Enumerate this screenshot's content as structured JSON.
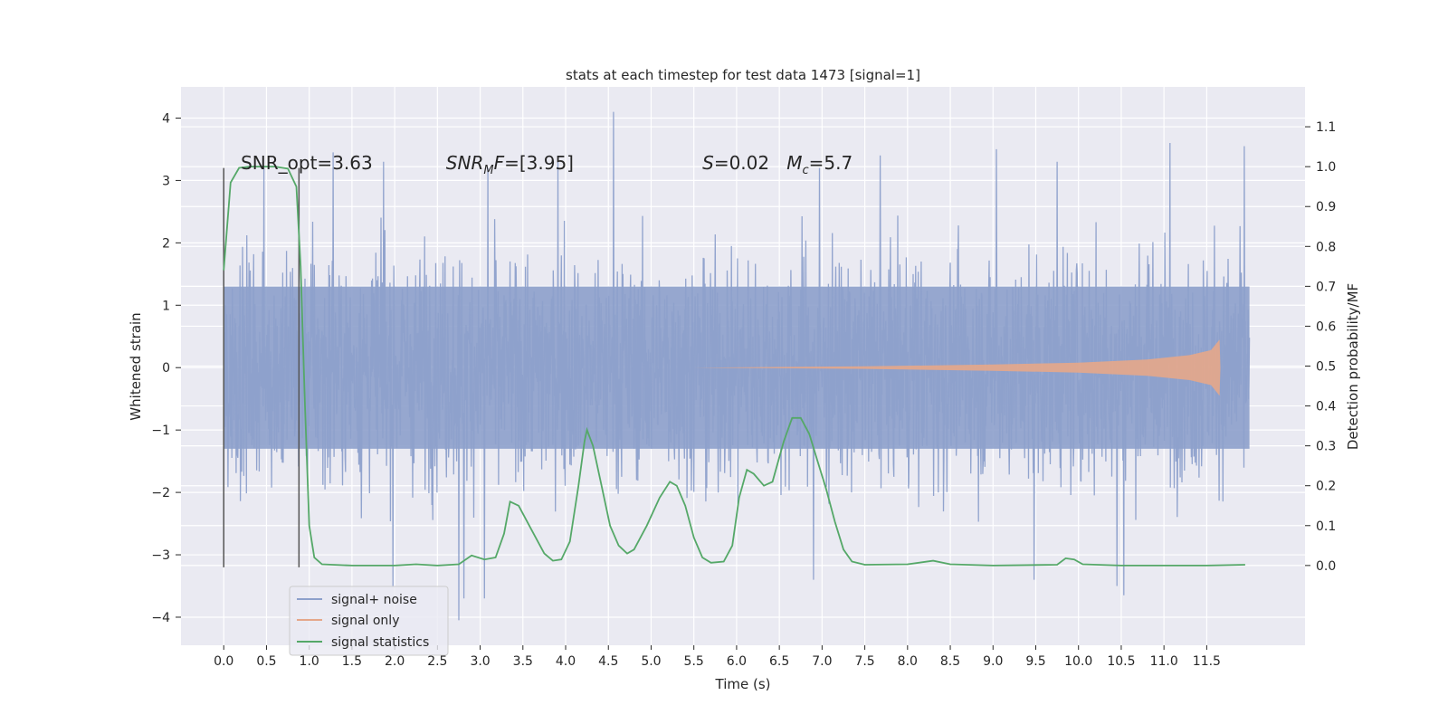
{
  "chart_data": {
    "type": "line",
    "title": "stats at each timestep for test data 1473 [signal=1]",
    "xlabel": "Time (s)",
    "ylabel_left": "Whitened strain",
    "ylabel_right": "Detection probability/MF",
    "xlim": [
      -0.5,
      12.65
    ],
    "ylim_left": [
      -4.45,
      4.5
    ],
    "ylim_right": [
      -0.2,
      1.2
    ],
    "xticks": [
      0.0,
      0.5,
      1.0,
      1.5,
      2.0,
      2.5,
      3.0,
      3.5,
      4.0,
      4.5,
      5.0,
      5.5,
      6.0,
      6.5,
      7.0,
      7.5,
      8.0,
      8.5,
      9.0,
      9.5,
      10.0,
      10.5,
      11.0,
      11.5
    ],
    "xtick_labels": [
      "0.0",
      "0.5",
      "1.0",
      "1.5",
      "2.0",
      "2.5",
      "3.0",
      "3.5",
      "4.0",
      "4.5",
      "5.0",
      "5.5",
      "6.0",
      "6.5",
      "7.0",
      "7.5",
      "8.0",
      "8.5",
      "9.0",
      "9.5",
      "10.0",
      "10.5",
      "11.0",
      "11.5"
    ],
    "yticks_left": [
      4,
      3,
      2,
      1,
      0,
      -1,
      -2,
      -3,
      -4
    ],
    "ytick_labels_left": [
      "4",
      "3",
      "2",
      "1",
      "0",
      "−1",
      "−2",
      "−3",
      "−4"
    ],
    "yticks_right": [
      1.1,
      1.0,
      0.9,
      0.8,
      0.7,
      0.6,
      0.5,
      0.4,
      0.3,
      0.2,
      0.1,
      0.0
    ],
    "ytick_labels_right": [
      "1.1",
      "1.0",
      "0.9",
      "0.8",
      "0.7",
      "0.6",
      "0.5",
      "0.4",
      "0.3",
      "0.2",
      "0.1",
      "0.0"
    ],
    "grid": true,
    "legend_position": "lower-left",
    "series": [
      {
        "name": "signal+ noise",
        "color": "#8da0cb",
        "axis": "left",
        "x_range": [
          0.0,
          12.0
        ],
        "band_limits": [
          -1.3,
          1.3
        ],
        "peaks": [
          {
            "x": 0.47,
            "y": 3.2
          },
          {
            "x": 1.28,
            "y": 3.45
          },
          {
            "x": 1.87,
            "y": 3.3
          },
          {
            "x": 3.09,
            "y": 3.2
          },
          {
            "x": 3.91,
            "y": 3.3
          },
          {
            "x": 4.56,
            "y": 4.1
          },
          {
            "x": 6.97,
            "y": 3.2
          },
          {
            "x": 7.68,
            "y": 3.4
          },
          {
            "x": 9.04,
            "y": 3.5
          },
          {
            "x": 9.75,
            "y": 3.3
          },
          {
            "x": 11.07,
            "y": 3.6
          },
          {
            "x": 11.94,
            "y": 3.55
          },
          {
            "x": 2.75,
            "y": -4.05
          },
          {
            "x": 2.81,
            "y": -3.7
          },
          {
            "x": 3.05,
            "y": -3.7
          },
          {
            "x": 10.53,
            "y": -3.65
          },
          {
            "x": 9.48,
            "y": -3.4
          },
          {
            "x": 10.45,
            "y": -3.5
          },
          {
            "x": 6.9,
            "y": -3.4
          },
          {
            "x": 1.98,
            "y": -3.5
          }
        ]
      },
      {
        "name": "signal only",
        "color": "#e5a78a",
        "axis": "left",
        "envelope": [
          [
            5.5,
            0.0
          ],
          [
            7.5,
            0.02
          ],
          [
            9.0,
            0.05
          ],
          [
            10.0,
            0.08
          ],
          [
            10.8,
            0.13
          ],
          [
            11.3,
            0.2
          ],
          [
            11.55,
            0.28
          ],
          [
            11.65,
            0.45
          ],
          [
            11.66,
            0.0
          ]
        ]
      },
      {
        "name": "signal statistics",
        "color": "#55a868",
        "axis": "right",
        "points": [
          [
            0.0,
            0.74
          ],
          [
            0.08,
            0.96
          ],
          [
            0.18,
            0.997
          ],
          [
            0.3,
            1.0
          ],
          [
            0.6,
            1.0
          ],
          [
            0.75,
            0.995
          ],
          [
            0.85,
            0.95
          ],
          [
            0.9,
            0.75
          ],
          [
            0.95,
            0.4
          ],
          [
            1.0,
            0.1
          ],
          [
            1.06,
            0.02
          ],
          [
            1.15,
            0.003
          ],
          [
            1.5,
            0.0
          ],
          [
            2.0,
            0.0
          ],
          [
            2.25,
            0.003
          ],
          [
            2.5,
            0.0
          ],
          [
            2.75,
            0.003
          ],
          [
            2.9,
            0.025
          ],
          [
            3.05,
            0.015
          ],
          [
            3.18,
            0.02
          ],
          [
            3.28,
            0.08
          ],
          [
            3.35,
            0.16
          ],
          [
            3.45,
            0.15
          ],
          [
            3.6,
            0.09
          ],
          [
            3.75,
            0.03
          ],
          [
            3.85,
            0.012
          ],
          [
            3.95,
            0.015
          ],
          [
            4.05,
            0.06
          ],
          [
            4.15,
            0.2
          ],
          [
            4.22,
            0.31
          ],
          [
            4.25,
            0.34
          ],
          [
            4.32,
            0.3
          ],
          [
            4.42,
            0.2
          ],
          [
            4.52,
            0.1
          ],
          [
            4.62,
            0.05
          ],
          [
            4.72,
            0.03
          ],
          [
            4.8,
            0.04
          ],
          [
            4.95,
            0.1
          ],
          [
            5.1,
            0.17
          ],
          [
            5.22,
            0.21
          ],
          [
            5.3,
            0.2
          ],
          [
            5.4,
            0.15
          ],
          [
            5.5,
            0.07
          ],
          [
            5.6,
            0.02
          ],
          [
            5.7,
            0.007
          ],
          [
            5.85,
            0.01
          ],
          [
            5.95,
            0.05
          ],
          [
            6.03,
            0.17
          ],
          [
            6.12,
            0.24
          ],
          [
            6.2,
            0.23
          ],
          [
            6.32,
            0.2
          ],
          [
            6.42,
            0.21
          ],
          [
            6.55,
            0.31
          ],
          [
            6.65,
            0.37
          ],
          [
            6.75,
            0.37
          ],
          [
            6.85,
            0.33
          ],
          [
            6.95,
            0.26
          ],
          [
            7.05,
            0.19
          ],
          [
            7.15,
            0.11
          ],
          [
            7.25,
            0.04
          ],
          [
            7.35,
            0.01
          ],
          [
            7.5,
            0.002
          ],
          [
            8.0,
            0.003
          ],
          [
            8.3,
            0.012
          ],
          [
            8.5,
            0.003
          ],
          [
            9.0,
            0.0
          ],
          [
            9.75,
            0.002
          ],
          [
            9.85,
            0.018
          ],
          [
            9.95,
            0.015
          ],
          [
            10.05,
            0.003
          ],
          [
            10.5,
            0.0
          ],
          [
            11.0,
            0.0
          ],
          [
            11.5,
            0.0
          ],
          [
            11.95,
            0.002
          ]
        ]
      }
    ],
    "markers": [
      {
        "x": 0.0,
        "y_range": [
          -3.2,
          3.2
        ],
        "color": "#555555"
      },
      {
        "x": 0.88,
        "y_range": [
          -3.2,
          3.2
        ],
        "color": "#555555"
      }
    ],
    "annotations": [
      {
        "text": "SNR_opt=3.63",
        "x": 0.2,
        "y": 3.28
      },
      {
        "prefix": "SNR",
        "sub": "M",
        "suffix": "F=[3.95]",
        "x": 2.6,
        "y": 3.28
      },
      {
        "prefix": "S",
        "mid": "=0.02   M",
        "sub": "c",
        "suffix": "=5.7",
        "x": 5.6,
        "y": 3.28
      }
    ]
  }
}
